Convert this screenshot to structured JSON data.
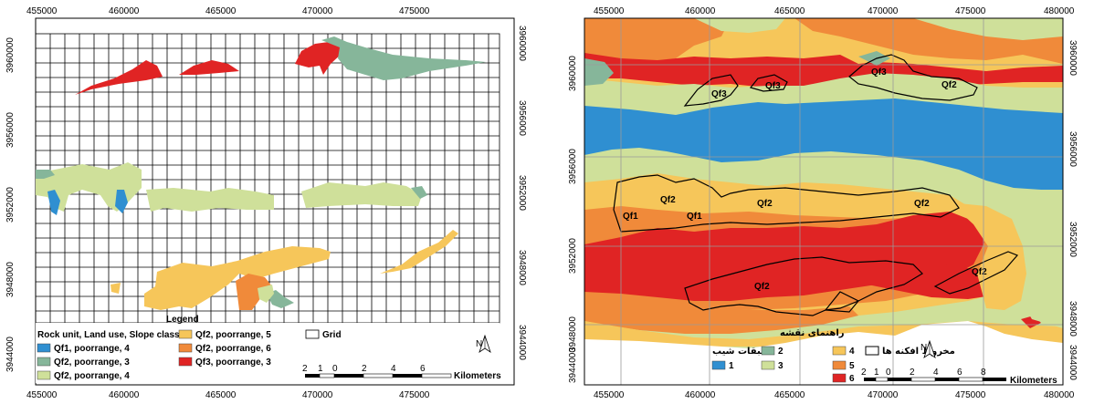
{
  "left_map": {
    "x_ticks": [
      "455000",
      "460000",
      "465000",
      "470000",
      "475000"
    ],
    "y_ticks": [
      "3960000",
      "3956000",
      "3952000",
      "3948000",
      "3944000"
    ],
    "legend_title": "Legend",
    "legend_header": "Rock unit, Land use, Slope class",
    "legend_items": [
      {
        "label": "Qf1, poorrange, 4",
        "color": "#2f8fd1"
      },
      {
        "label": "Qf2, poorrange, 3",
        "color": "#86b69a"
      },
      {
        "label": "Qf2, poorrange, 4",
        "color": "#cfe09a"
      },
      {
        "label": "Qf2, poorrange, 5",
        "color": "#f6c65a"
      },
      {
        "label": "Qf2, poorrange, 6",
        "color": "#f08a3a"
      },
      {
        "label": "Qf3, poorrange, 3",
        "color": "#e02424"
      }
    ],
    "grid_label": "Grid",
    "scale_labels": [
      "2",
      "1",
      "0",
      "2",
      "4",
      "6"
    ],
    "scale_unit": "Kilometers",
    "north": "N"
  },
  "right_map": {
    "x_ticks": [
      "455000",
      "460000",
      "465000",
      "470000",
      "475000",
      "480000"
    ],
    "y_ticks": [
      "3960000",
      "3956000",
      "3952000",
      "3948000",
      "3944000"
    ],
    "legend_title": "راهنمای نقشه",
    "legend_slope_header": "طبقات شیب",
    "legend_cone_label": "مخروط افکنه ها",
    "legend_items": [
      {
        "label": "1",
        "color": "#2f8fd1"
      },
      {
        "label": "2",
        "color": "#86b69a"
      },
      {
        "label": "3",
        "color": "#cfe09a"
      },
      {
        "label": "4",
        "color": "#f6c65a"
      },
      {
        "label": "5",
        "color": "#f08a3a"
      },
      {
        "label": "6",
        "color": "#e02424"
      }
    ],
    "fan_labels": [
      "Qf3",
      "Qf3",
      "Qf3",
      "Qf2",
      "Qf2",
      "Qf1",
      "Qf1",
      "Qf2",
      "Qf2",
      "Qf2",
      "Qf2"
    ],
    "scale_labels": [
      "2",
      "1",
      "0",
      "2",
      "4",
      "6",
      "8"
    ],
    "scale_unit": "Kilometers",
    "north": "N"
  }
}
